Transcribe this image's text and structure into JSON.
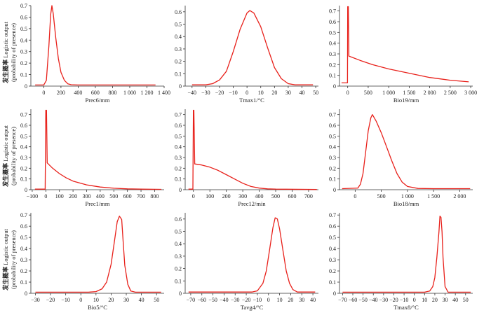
{
  "ylabel_cn": "发生概率",
  "ylabel_en": "Logistic output",
  "ylabel_sub": "(probability of presence)",
  "curve_color": "#e8211b",
  "chart_data": [
    {
      "type": "line",
      "xlabel": "Prec6/mm",
      "xlim": [
        -150,
        1400
      ],
      "ylim": [
        0,
        0.7
      ],
      "xticks": [
        0,
        200,
        400,
        600,
        800,
        1000,
        1200,
        1400
      ],
      "xtick_labels": [
        "0",
        "200",
        "400",
        "600",
        "800",
        "1 000",
        "1 200",
        "1 400"
      ],
      "yticks": [
        0,
        0.1,
        0.2,
        0.3,
        0.4,
        0.5,
        0.6,
        0.7
      ],
      "ytick_labels": [
        "0",
        "0.1",
        "0.2",
        "0.3",
        "0.4",
        "0.5",
        "0.6",
        "0.7"
      ],
      "x": [
        -100,
        0,
        30,
        60,
        80,
        95,
        110,
        140,
        170,
        200,
        240,
        280,
        320,
        400,
        600,
        1000,
        1300
      ],
      "y": [
        0.01,
        0.01,
        0.05,
        0.35,
        0.62,
        0.7,
        0.63,
        0.42,
        0.24,
        0.12,
        0.05,
        0.02,
        0.012,
        0.01,
        0.01,
        0.01,
        0.01
      ]
    },
    {
      "type": "line",
      "xlabel": "Tmax1/°C",
      "xlim": [
        -45,
        52
      ],
      "ylim": [
        0,
        0.65
      ],
      "xticks": [
        -40,
        -30,
        -20,
        -10,
        0,
        10,
        20,
        30,
        40,
        50
      ],
      "xtick_labels": [
        "−40",
        "−30",
        "−20",
        "−10",
        "0",
        "10",
        "20",
        "30",
        "40",
        "50"
      ],
      "yticks": [
        0,
        0.1,
        0.2,
        0.3,
        0.4,
        0.5,
        0.6
      ],
      "ytick_labels": [
        "0",
        "0.1",
        "0.2",
        "0.3",
        "0.4",
        "0.5",
        "0.6"
      ],
      "x": [
        -40,
        -30,
        -25,
        -20,
        -15,
        -10,
        -5,
        0,
        2,
        5,
        10,
        15,
        20,
        25,
        30,
        35,
        40,
        48
      ],
      "y": [
        0.01,
        0.01,
        0.02,
        0.05,
        0.12,
        0.28,
        0.46,
        0.59,
        0.61,
        0.59,
        0.48,
        0.31,
        0.15,
        0.06,
        0.02,
        0.01,
        0.01,
        0.01
      ]
    },
    {
      "type": "line",
      "xlabel": "Bio19/mm",
      "xlim": [
        -200,
        3050
      ],
      "ylim": [
        0,
        0.75
      ],
      "xticks": [
        0,
        500,
        1000,
        1500,
        2000,
        2500,
        3000
      ],
      "xtick_labels": [
        "0",
        "500",
        "1 000",
        "1 500",
        "2 000",
        "2 500",
        "3 000"
      ],
      "yticks": [
        0,
        0.1,
        0.2,
        0.3,
        0.4,
        0.5,
        0.6,
        0.7
      ],
      "ytick_labels": [
        "0",
        "0.1",
        "0.2",
        "0.3",
        "0.4",
        "0.5",
        "0.6",
        "0.7"
      ],
      "x": [
        -150,
        -5,
        0,
        15,
        30,
        300,
        600,
        1000,
        1500,
        2000,
        2500,
        2950
      ],
      "y": [
        0.03,
        0.03,
        0.74,
        0.74,
        0.28,
        0.24,
        0.2,
        0.16,
        0.12,
        0.08,
        0.055,
        0.04
      ]
    },
    {
      "type": "line",
      "xlabel": "Prec1/mm",
      "xlim": [
        -110,
        870
      ],
      "ylim": [
        0,
        0.75
      ],
      "xticks": [
        -100,
        0,
        100,
        200,
        300,
        400,
        500,
        600,
        700,
        800
      ],
      "xtick_labels": [
        "−100",
        "0",
        "100",
        "200",
        "300",
        "400",
        "500",
        "600",
        "700",
        "800"
      ],
      "yticks": [
        0,
        0.1,
        0.2,
        0.3,
        0.4,
        0.5,
        0.6,
        0.7
      ],
      "ytick_labels": [
        "0",
        "0.1",
        "0.2",
        "0.3",
        "0.4",
        "0.5",
        "0.6",
        "0.7"
      ],
      "x": [
        -80,
        -5,
        0,
        5,
        10,
        50,
        100,
        150,
        200,
        300,
        400,
        500,
        600,
        700,
        850
      ],
      "y": [
        0.005,
        0.005,
        0.74,
        0.74,
        0.25,
        0.2,
        0.15,
        0.11,
        0.08,
        0.045,
        0.025,
        0.014,
        0.008,
        0.005,
        0.003
      ]
    },
    {
      "type": "line",
      "xlabel": "Prec12/min",
      "xlim": [
        -50,
        760
      ],
      "ylim": [
        0,
        0.75
      ],
      "xticks": [
        0,
        100,
        200,
        300,
        400,
        500,
        600,
        700
      ],
      "xtick_labels": [
        "0",
        "100",
        "200",
        "300",
        "400",
        "500",
        "600",
        "700"
      ],
      "yticks": [
        0,
        0.1,
        0.2,
        0.3,
        0.4,
        0.5,
        0.6,
        0.7
      ],
      "ytick_labels": [
        "0",
        "0.1",
        "0.2",
        "0.3",
        "0.4",
        "0.5",
        "0.6",
        "0.7"
      ],
      "x": [
        -30,
        -3,
        0,
        3,
        8,
        50,
        100,
        150,
        200,
        250,
        300,
        350,
        400,
        450,
        500,
        750
      ],
      "y": [
        0.005,
        0.005,
        0.74,
        0.74,
        0.24,
        0.23,
        0.21,
        0.18,
        0.14,
        0.1,
        0.06,
        0.03,
        0.015,
        0.008,
        0.005,
        0.002
      ]
    },
    {
      "type": "line",
      "xlabel": "Bio18/mm",
      "xlim": [
        -300,
        2250
      ],
      "ylim": [
        0,
        0.75
      ],
      "xticks": [
        0,
        500,
        1000,
        1500,
        2000
      ],
      "xtick_labels": [
        "0",
        "500",
        "1 000",
        "1 500",
        "2 000"
      ],
      "yticks": [
        0,
        0.1,
        0.2,
        0.3,
        0.4,
        0.5,
        0.6,
        0.7
      ],
      "ytick_labels": [
        "0",
        "0.1",
        "0.2",
        "0.3",
        "0.4",
        "0.5",
        "0.6",
        "0.7"
      ],
      "x": [
        -250,
        50,
        100,
        150,
        200,
        250,
        300,
        330,
        400,
        500,
        600,
        700,
        800,
        900,
        1000,
        1200,
        1500,
        2200
      ],
      "y": [
        0.01,
        0.015,
        0.05,
        0.15,
        0.35,
        0.55,
        0.67,
        0.7,
        0.64,
        0.53,
        0.4,
        0.27,
        0.15,
        0.07,
        0.03,
        0.012,
        0.01,
        0.01
      ]
    },
    {
      "type": "line",
      "xlabel": "Bio5/°C",
      "xlim": [
        -33,
        55
      ],
      "ylim": [
        0,
        0.72
      ],
      "xticks": [
        -30,
        -20,
        -10,
        0,
        10,
        20,
        30,
        40,
        50
      ],
      "xtick_labels": [
        "−30",
        "−20",
        "−10",
        "0",
        "10",
        "20",
        "30",
        "40",
        "50"
      ],
      "yticks": [
        0,
        0.1,
        0.2,
        0.3,
        0.4,
        0.5,
        0.6,
        0.7
      ],
      "ytick_labels": [
        "0",
        "0.1",
        "0.2",
        "0.3",
        "0.4",
        "0.5",
        "0.6",
        "0.7"
      ],
      "x": [
        -30,
        5,
        10,
        14,
        17,
        20,
        22,
        24,
        25.5,
        27,
        28,
        29,
        31,
        33,
        36,
        40,
        53
      ],
      "y": [
        0.01,
        0.01,
        0.015,
        0.04,
        0.1,
        0.26,
        0.45,
        0.64,
        0.69,
        0.66,
        0.45,
        0.25,
        0.08,
        0.02,
        0.01,
        0.01,
        0.01
      ]
    },
    {
      "type": "line",
      "xlabel": "Tavg4/°C",
      "xlim": [
        -75,
        45
      ],
      "ylim": [
        0,
        0.65
      ],
      "xticks": [
        -70,
        -60,
        -50,
        -40,
        -30,
        -20,
        -10,
        0,
        10,
        20,
        30,
        40
      ],
      "xtick_labels": [
        "−70",
        "−60",
        "−50",
        "−40",
        "−30",
        "−20",
        "−10",
        "0",
        "10",
        "20",
        "30",
        "40"
      ],
      "yticks": [
        0,
        0.1,
        0.2,
        0.3,
        0.4,
        0.5,
        0.6
      ],
      "ytick_labels": [
        "0",
        "0.1",
        "0.2",
        "0.3",
        "0.4",
        "0.5",
        "0.6"
      ],
      "x": [
        -72,
        -15,
        -10,
        -5,
        -2,
        1,
        4,
        6,
        8,
        10,
        13,
        16,
        19,
        22,
        26,
        42
      ],
      "y": [
        0.01,
        0.01,
        0.02,
        0.08,
        0.18,
        0.35,
        0.53,
        0.61,
        0.6,
        0.52,
        0.35,
        0.18,
        0.08,
        0.03,
        0.01,
        0.01
      ]
    },
    {
      "type": "line",
      "xlabel": "Tmax8/°C",
      "xlim": [
        -73,
        57
      ],
      "ylim": [
        0,
        0.72
      ],
      "xticks": [
        -70,
        -60,
        -50,
        -40,
        -30,
        -20,
        -10,
        0,
        10,
        20,
        30,
        40,
        50
      ],
      "xtick_labels": [
        "−70",
        "−60",
        "−50",
        "−40",
        "−30",
        "−20",
        "−10",
        "0",
        "10",
        "20",
        "30",
        "40",
        "50"
      ],
      "yticks": [
        0,
        0.1,
        0.2,
        0.3,
        0.4,
        0.5,
        0.6,
        0.7
      ],
      "ytick_labels": [
        "0",
        "0.1",
        "0.2",
        "0.3",
        "0.4",
        "0.5",
        "0.6",
        "0.7"
      ],
      "x": [
        -70,
        10,
        15,
        18,
        20,
        22,
        24,
        25,
        26,
        27,
        28,
        30,
        33,
        55
      ],
      "y": [
        0.01,
        0.01,
        0.02,
        0.06,
        0.14,
        0.32,
        0.55,
        0.69,
        0.68,
        0.55,
        0.32,
        0.06,
        0.01,
        0.01
      ]
    }
  ]
}
